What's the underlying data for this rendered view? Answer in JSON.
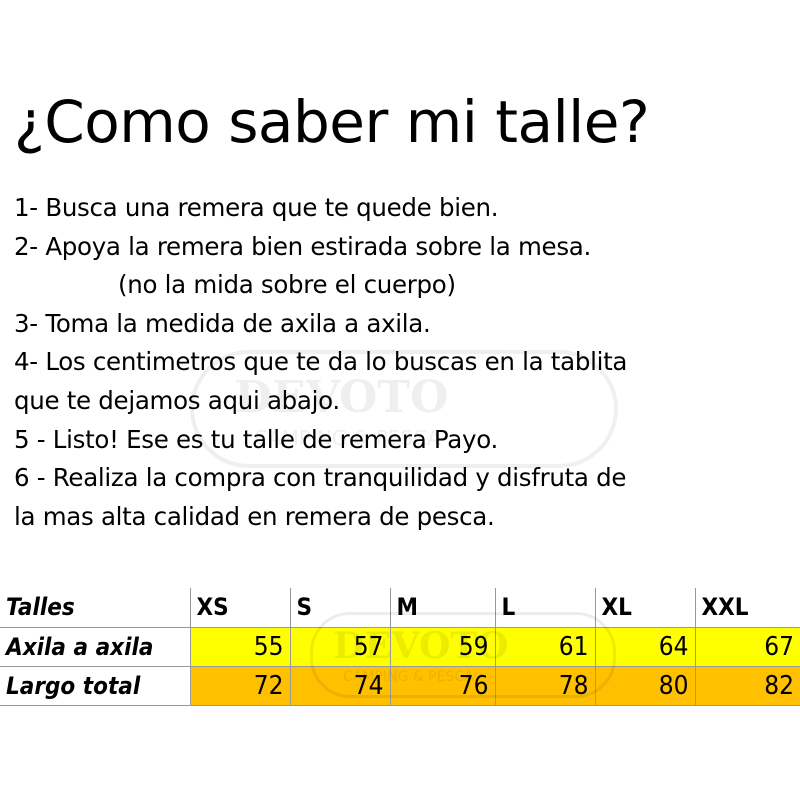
{
  "title": "¿Como saber mi talle?",
  "steps": [
    "1- Busca una remera que te quede bien.",
    "2- Apoya la remera bien estirada sobre la mesa.",
    "(no la mida sobre el cuerpo)",
    "3- Toma la medida de axila a axila.",
    "4- Los centimetros que te da lo buscas en la tablita",
    "que te dejamos aqui abajo.",
    "5 - Listo! Ese es tu talle de remera Payo.",
    "6 - Realiza la compra con tranquilidad y disfruta de",
    "la mas alta calidad en remera de pesca."
  ],
  "watermark": {
    "brand": "DEVOTO",
    "tagline": "CAMPING & PESCA"
  },
  "table": {
    "header": [
      "Talles",
      "XS",
      "S",
      "M",
      "L",
      "XL",
      "XXL"
    ],
    "rows": [
      {
        "label": "Axila a axila",
        "values": [
          "55",
          "57",
          "59",
          "61",
          "64",
          "67"
        ]
      },
      {
        "label": "Largo total",
        "values": [
          "72",
          "74",
          "76",
          "78",
          "80",
          "82"
        ]
      }
    ],
    "colors": {
      "axila": "#ffff00",
      "largo": "#ffc000"
    }
  }
}
